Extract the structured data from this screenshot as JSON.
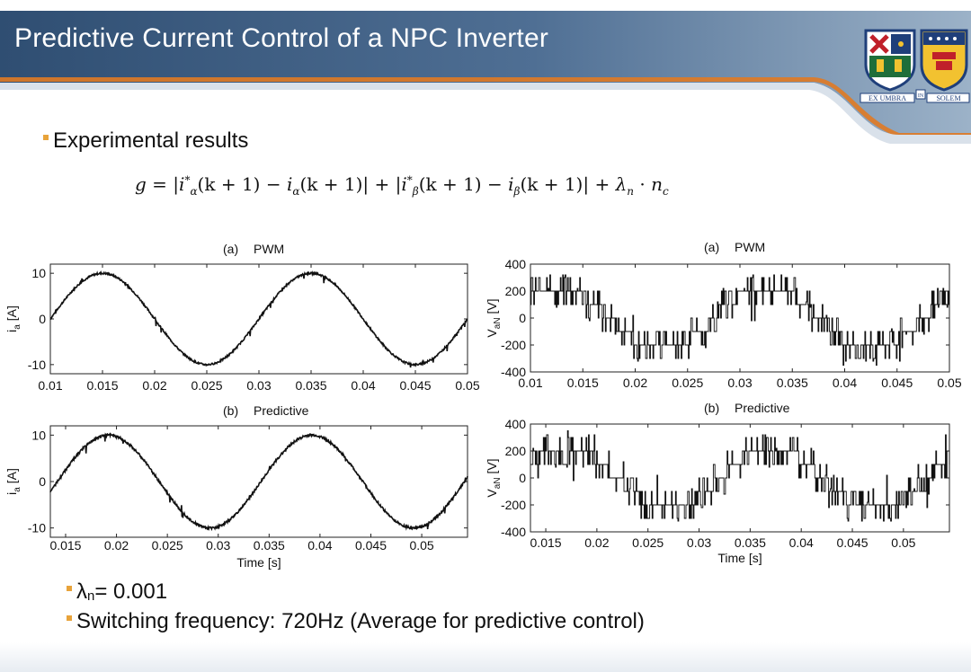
{
  "slide": {
    "title": "Predictive Current Control of a NPC Inverter",
    "bullets": {
      "experimental": "Experimental results",
      "lambda_symbol": "λ",
      "lambda_sub": "n",
      "lambda_value": " = 0.001",
      "switching": "Switching frequency: 720Hz (Average for predictive control)"
    }
  },
  "formula": {
    "g": "g",
    "eq": " = |",
    "i1": "i",
    "s1": "α",
    "p1": "*",
    "k1": "(k + 1) − ",
    "i2": "i",
    "s2": "α",
    "k2": "(k + 1)| + |",
    "i3": "i",
    "s3": "β",
    "p3": "*",
    "k3": "(k + 1) − ",
    "i4": "i",
    "s4": "β",
    "k4": "(k + 1)| + ",
    "lam": "λ",
    "lsub": "n",
    "dot": " · ",
    "n": "n",
    "nsub": "c"
  },
  "logo": {
    "motto_left": "EX UMBRA",
    "motto_mid": "IN",
    "motto_right": "SOLEM"
  },
  "colors": {
    "header_dark": "#3d5a7c",
    "header_light": "#8aa2bb",
    "header_stripe": "#e07a24",
    "bullet_mark": "#e8a33a",
    "trace": "#111111"
  },
  "chart_data": [
    {
      "type": "line",
      "id": "current_pwm",
      "title_tag": "(a)",
      "title": "PWM",
      "ylabel": "i",
      "ylabel_sub": "a",
      "ylabel_unit": " [A]",
      "xlabel": "",
      "xlim": [
        0.01,
        0.05
      ],
      "ylim": [
        -12,
        12
      ],
      "xticks": [
        "0.01",
        "0.015",
        "0.02",
        "0.025",
        "0.03",
        "0.035",
        "0.04",
        "0.045",
        "0.05"
      ],
      "xtick_values": [
        0.01,
        0.015,
        0.02,
        0.025,
        0.03,
        0.035,
        0.04,
        0.045,
        0.05
      ],
      "yticks": [
        "10",
        "0",
        "-10"
      ],
      "ytick_values": [
        10,
        0,
        -10
      ],
      "waveform": {
        "kind": "sine",
        "amplitude": 10,
        "frequency_hz": 50,
        "peak_at": 0.015,
        "noise": 0.4
      },
      "series": [
        {
          "values_sampled": [
            [
              0.01,
              0.0
            ],
            [
              0.015,
              10.0
            ],
            [
              0.02,
              0.0
            ],
            [
              0.025,
              -10.0
            ],
            [
              0.03,
              0.0
            ],
            [
              0.035,
              10.0
            ],
            [
              0.04,
              0.0
            ],
            [
              0.045,
              -10.0
            ],
            [
              0.05,
              0.0
            ]
          ]
        }
      ]
    },
    {
      "type": "line",
      "id": "voltage_pwm",
      "title_tag": "(a)",
      "title": "PWM",
      "ylabel": "V",
      "ylabel_sub": "aN",
      "ylabel_unit": " [V]",
      "xlabel": "",
      "xlim": [
        0.01,
        0.05
      ],
      "ylim": [
        -400,
        400
      ],
      "xticks": [
        "0.01",
        "0.015",
        "0.02",
        "0.025",
        "0.03",
        "0.035",
        "0.04",
        "0.045",
        "0.05"
      ],
      "xtick_values": [
        0.01,
        0.015,
        0.02,
        0.025,
        0.03,
        0.035,
        0.04,
        0.045,
        0.05
      ],
      "yticks": [
        "400",
        "200",
        "0",
        "-200",
        "-400"
      ],
      "ytick_values": [
        400,
        200,
        0,
        -200,
        -400
      ],
      "waveform": {
        "kind": "multilevel",
        "levels": [
          -350,
          -200,
          -100,
          0,
          100,
          200,
          350
        ],
        "frequency_hz": 50,
        "peak_at": 0.0125
      }
    },
    {
      "type": "line",
      "id": "current_predictive",
      "title_tag": "(b)",
      "title": "Predictive",
      "ylabel": "i",
      "ylabel_sub": "a",
      "ylabel_unit": " [A]",
      "xlabel": "Time [s]",
      "xlim": [
        0.0135,
        0.0545
      ],
      "ylim": [
        -12,
        12
      ],
      "xticks": [
        "0.015",
        "0.02",
        "0.025",
        "0.03",
        "0.035",
        "0.04",
        "0.045",
        "0.05"
      ],
      "xtick_values": [
        0.015,
        0.02,
        0.025,
        0.03,
        0.035,
        0.04,
        0.045,
        0.05
      ],
      "yticks": [
        "10",
        "0",
        "-10"
      ],
      "ytick_values": [
        10,
        0,
        -10
      ],
      "waveform": {
        "kind": "sine",
        "amplitude": 10,
        "frequency_hz": 50,
        "peak_at": 0.0192,
        "noise": 0.5
      },
      "series": [
        {
          "values_sampled": [
            [
              0.0142,
              0.0
            ],
            [
              0.0192,
              10.0
            ],
            [
              0.0242,
              0.0
            ],
            [
              0.0292,
              -10.0
            ],
            [
              0.0342,
              0.0
            ],
            [
              0.0392,
              10.0
            ],
            [
              0.0442,
              0.0
            ],
            [
              0.0492,
              -10.0
            ],
            [
              0.0542,
              0.0
            ]
          ]
        }
      ]
    },
    {
      "type": "line",
      "id": "voltage_predictive",
      "title_tag": "(b)",
      "title": "Predictive",
      "ylabel": "V",
      "ylabel_sub": "aN",
      "ylabel_unit": " [V]",
      "xlabel": "Time [s]",
      "xlim": [
        0.0135,
        0.0545
      ],
      "ylim": [
        -400,
        400
      ],
      "xticks": [
        "0.015",
        "0.02",
        "0.025",
        "0.03",
        "0.035",
        "0.04",
        "0.045",
        "0.05"
      ],
      "xtick_values": [
        0.015,
        0.02,
        0.025,
        0.03,
        0.035,
        0.04,
        0.045,
        0.05
      ],
      "yticks": [
        "400",
        "200",
        "0",
        "-200",
        "-400"
      ],
      "ytick_values": [
        400,
        200,
        0,
        -200,
        -400
      ],
      "waveform": {
        "kind": "multilevel",
        "levels": [
          -350,
          -200,
          -100,
          0,
          100,
          200,
          350
        ],
        "frequency_hz": 50,
        "peak_at": 0.017
      }
    }
  ]
}
